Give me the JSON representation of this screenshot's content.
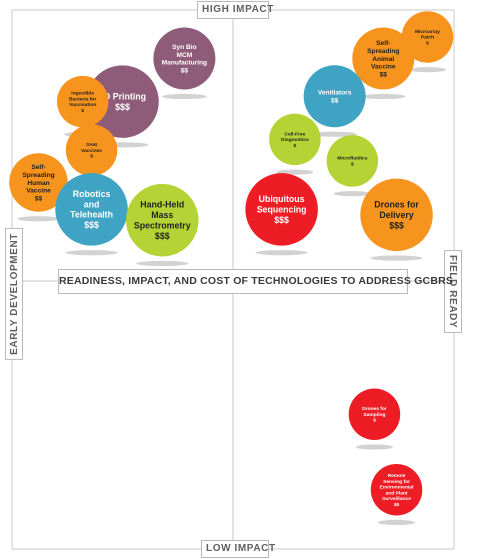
{
  "title": "READINESS, IMPACT, AND COST OF TECHNOLOGIES TO ADDRESS GCBRS",
  "axis_labels": {
    "top": "HIGH IMPACT",
    "bottom": "LOW IMPACT",
    "left": "EARLY DEVELOPMENT",
    "right": "FIELD READY"
  },
  "colors": {
    "purple": "#8e5b79",
    "orange": "#f7941d",
    "teal": "#3fa3c3",
    "lime": "#b6d335",
    "red": "#ee1c25",
    "label_dark": "#222222",
    "label_light": "#ffffff"
  },
  "chart_data": {
    "type": "scatter",
    "title": "READINESS, IMPACT, AND COST OF TECHNOLOGIES TO ADDRESS GCBRS",
    "xlabel_left": "EARLY DEVELOPMENT",
    "xlabel_right": "FIELD READY",
    "ylabel_top": "HIGH IMPACT",
    "ylabel_bottom": "LOW IMPACT",
    "note": "",
    "points": [
      {
        "label": [
          "Syn Bio",
          "MCM",
          "Manufacturing"
        ],
        "cost": "$$",
        "readiness": 0.39,
        "impact": 0.91,
        "size": 0.6,
        "color": "purple"
      },
      {
        "label": [
          "3D Printing"
        ],
        "cost": "$$$",
        "readiness": 0.25,
        "impact": 0.83,
        "size": 0.75,
        "color": "purple"
      },
      {
        "label": [
          "Ingestible",
          "Bacteria for",
          "Vaccination"
        ],
        "cost": "$",
        "readiness": 0.16,
        "impact": 0.83,
        "size": 0.45,
        "color": "orange"
      },
      {
        "label": [
          "SAM",
          "Vaccines"
        ],
        "cost": "$",
        "readiness": 0.18,
        "impact": 0.74,
        "size": 0.45,
        "color": "orange"
      },
      {
        "label": [
          "Self-",
          "Spreading",
          "Human",
          "Vaccine"
        ],
        "cost": "$$",
        "readiness": 0.06,
        "impact": 0.68,
        "size": 0.55,
        "color": "orange"
      },
      {
        "label": [
          "Robotics",
          "and",
          "Telehealth"
        ],
        "cost": "$$$",
        "readiness": 0.18,
        "impact": 0.63,
        "size": 0.75,
        "color": "teal"
      },
      {
        "label": [
          "Hand-Held",
          "Mass",
          "Spectrometry"
        ],
        "cost": "$$$",
        "readiness": 0.34,
        "impact": 0.61,
        "size": 0.75,
        "color": "lime"
      },
      {
        "label": [
          "Microarray",
          "Patch"
        ],
        "cost": "$",
        "readiness": 0.94,
        "impact": 0.95,
        "size": 0.45,
        "color": "orange"
      },
      {
        "label": [
          "Self-",
          "Spreading",
          "Animal",
          "Vaccine"
        ],
        "cost": "$$",
        "readiness": 0.84,
        "impact": 0.91,
        "size": 0.6,
        "color": "orange"
      },
      {
        "label": [
          "Ventilators"
        ],
        "cost": "$$",
        "readiness": 0.73,
        "impact": 0.84,
        "size": 0.6,
        "color": "teal"
      },
      {
        "label": [
          "Cell-Free",
          "Diagnostics"
        ],
        "cost": "$",
        "readiness": 0.64,
        "impact": 0.76,
        "size": 0.45,
        "color": "lime"
      },
      {
        "label": [
          "Microfluidics"
        ],
        "cost": "$",
        "readiness": 0.77,
        "impact": 0.72,
        "size": 0.45,
        "color": "lime"
      },
      {
        "label": [
          "Ubiquitous",
          "Sequencing"
        ],
        "cost": "$$$",
        "readiness": 0.61,
        "impact": 0.63,
        "size": 0.75,
        "color": "red"
      },
      {
        "label": [
          "Drones for",
          "Delivery"
        ],
        "cost": "$$$",
        "readiness": 0.87,
        "impact": 0.62,
        "size": 0.75,
        "color": "orange"
      },
      {
        "label": [
          "Drones for",
          "Sampling"
        ],
        "cost": "$",
        "readiness": 0.82,
        "impact": 0.25,
        "size": 0.45,
        "color": "red"
      },
      {
        "label": [
          "Remote",
          "Sensing for",
          "Environmental",
          "and Plant",
          "Surveillance"
        ],
        "cost": "$$",
        "readiness": 0.87,
        "impact": 0.11,
        "size": 0.45,
        "color": "red"
      }
    ]
  }
}
